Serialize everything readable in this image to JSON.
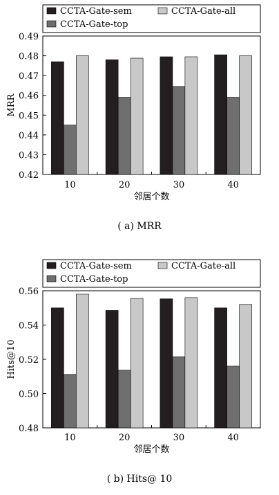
{
  "colors": {
    "sem": "#231f20",
    "top": "#6f6f6f",
    "all": "#c8c8c8"
  },
  "chart_data": [
    {
      "type": "bar",
      "categories": [
        "10",
        "20",
        "30",
        "40"
      ],
      "series": [
        {
          "name": "CCTA-Gate-sem",
          "values": [
            0.477,
            0.478,
            0.4795,
            0.4805
          ]
        },
        {
          "name": "CCTA-Gate-top",
          "values": [
            0.445,
            0.459,
            0.4645,
            0.459
          ]
        },
        {
          "name": "CCTA-Gate-all",
          "values": [
            0.48,
            0.4788,
            0.4795,
            0.48
          ]
        }
      ],
      "xlabel": "邻居个数",
      "ylabel": "MRR",
      "ylim": [
        0.42,
        0.49
      ],
      "yticks": [
        "0.42",
        "0.43",
        "0.44",
        "0.45",
        "0.46",
        "0.47",
        "0.48",
        "0.49"
      ],
      "legend": "top",
      "caption": "( a) MRR"
    },
    {
      "type": "bar",
      "categories": [
        "10",
        "20",
        "30",
        "40"
      ],
      "series": [
        {
          "name": "CCTA-Gate-sem",
          "values": [
            0.55,
            0.5485,
            0.5553,
            0.55
          ]
        },
        {
          "name": "CCTA-Gate-top",
          "values": [
            0.5112,
            0.5137,
            0.5215,
            0.516
          ]
        },
        {
          "name": "CCTA-Gate-all",
          "values": [
            0.558,
            0.5555,
            0.556,
            0.552
          ]
        }
      ],
      "xlabel": "邻居个数",
      "ylabel": "Hits@10",
      "ylim": [
        0.48,
        0.56
      ],
      "yticks": [
        "0.48",
        "0.50",
        "0.52",
        "0.54",
        "0.56"
      ],
      "legend": "top",
      "caption": "( b) Hits@ 10"
    }
  ]
}
